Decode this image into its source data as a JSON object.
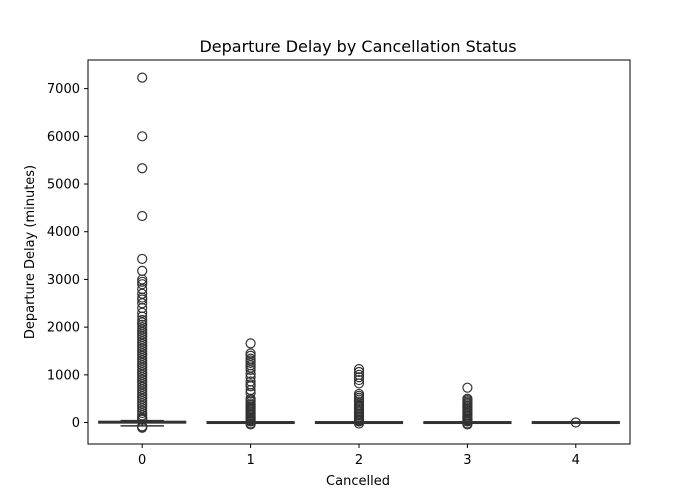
{
  "chart_data": {
    "type": "box",
    "title": "Departure Delay by Cancellation Status",
    "xlabel": "Cancelled",
    "ylabel": "Departure Delay (minutes)",
    "categories": [
      "0",
      "1",
      "2",
      "3",
      "4"
    ],
    "ylim": [
      -450,
      7600
    ],
    "yticks": [
      0,
      1000,
      2000,
      3000,
      4000,
      5000,
      6000,
      7000
    ],
    "grid": false,
    "colors": {
      "box_fill": "#3b75af",
      "line": "#333333",
      "frame": "#000000"
    },
    "boxes": [
      {
        "category": "0",
        "q1": -5,
        "median": 0,
        "q3": 20,
        "whisker_low": -70,
        "whisker_high": 40,
        "outliers": [
          7230,
          6000,
          5330,
          4330,
          3430,
          3180,
          3000,
          2950,
          2900,
          2800,
          2700,
          2620,
          2580,
          2500,
          2400,
          2300,
          2220,
          2150,
          2100,
          2050,
          2000,
          1950,
          1900,
          1850,
          1800,
          1750,
          1700,
          1650,
          1600,
          1550,
          1500,
          1450,
          1400,
          1350,
          1300,
          1250,
          1200,
          1150,
          1100,
          1050,
          1000,
          950,
          900,
          850,
          800,
          750,
          700,
          650,
          600,
          550,
          500,
          450,
          400,
          350,
          300,
          250,
          200,
          150,
          100,
          80,
          60,
          -80,
          -100,
          -110
        ]
      },
      {
        "category": "1",
        "q1": -2,
        "median": 0,
        "q3": 2,
        "whisker_low": -5,
        "whisker_high": 5,
        "outliers": [
          1660,
          1450,
          1400,
          1340,
          1300,
          1250,
          1200,
          1150,
          1100,
          1020,
          950,
          860,
          800,
          760,
          680,
          620,
          500,
          470,
          440,
          400,
          370,
          340,
          310,
          280,
          250,
          220,
          190,
          160,
          130,
          100,
          80,
          60,
          40,
          20,
          -20,
          -40
        ]
      },
      {
        "category": "2",
        "q1": -2,
        "median": 0,
        "q3": 2,
        "whisker_low": -5,
        "whisker_high": 5,
        "outliers": [
          1120,
          1060,
          1000,
          950,
          890,
          820,
          600,
          560,
          520,
          480,
          440,
          400,
          360,
          330,
          300,
          270,
          240,
          210,
          180,
          150,
          120,
          90,
          60,
          40,
          20,
          -20
        ]
      },
      {
        "category": "3",
        "q1": -2,
        "median": 0,
        "q3": 2,
        "whisker_low": -5,
        "whisker_high": 5,
        "outliers": [
          730,
          500,
          470,
          440,
          410,
          380,
          350,
          320,
          290,
          260,
          230,
          200,
          170,
          140,
          110,
          80,
          60,
          40,
          20,
          -20,
          -40
        ]
      },
      {
        "category": "4",
        "q1": -2,
        "median": 0,
        "q3": 2,
        "whisker_low": -3,
        "whisker_high": 3,
        "outliers": [
          0
        ]
      }
    ]
  }
}
